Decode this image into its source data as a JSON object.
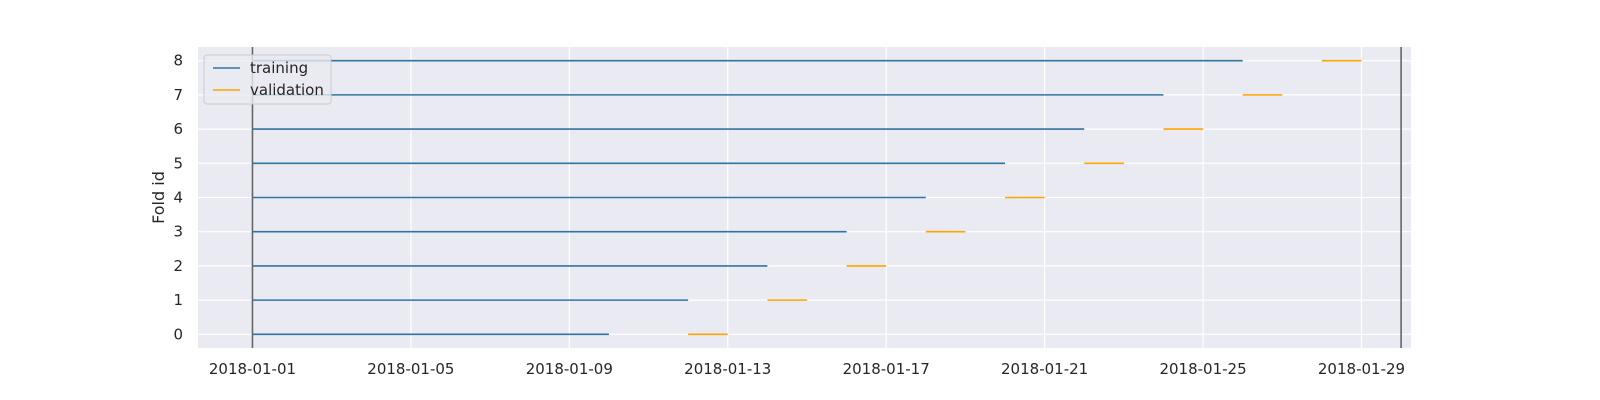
{
  "chart_data": {
    "type": "line",
    "xlabel": "",
    "ylabel": "Fold id",
    "x_ticks": [
      "2018-01-01",
      "2018-01-05",
      "2018-01-09",
      "2018-01-13",
      "2018-01-17",
      "2018-01-21",
      "2018-01-25",
      "2018-01-29"
    ],
    "y_ticks": [
      0,
      1,
      2,
      3,
      4,
      5,
      6,
      7,
      8
    ],
    "xlim": [
      "2017-12-30 15:00",
      "2018-01-30 06:00"
    ],
    "ylim": [
      -0.4,
      8.4
    ],
    "vertical_lines": [
      "2018-01-01",
      "2018-01-30"
    ],
    "grid": true,
    "legend_position": "top-left",
    "colors": {
      "training": "#3274a1",
      "validation": "#ffa500",
      "plot_background": "#eaeaf2",
      "grid": "#ffffff",
      "vline": "#666666"
    },
    "series": [
      {
        "name": "training",
        "segments": [
          {
            "fold": 0,
            "start": "2018-01-01",
            "end": "2018-01-10"
          },
          {
            "fold": 1,
            "start": "2018-01-01",
            "end": "2018-01-12"
          },
          {
            "fold": 2,
            "start": "2018-01-01",
            "end": "2018-01-14"
          },
          {
            "fold": 3,
            "start": "2018-01-01",
            "end": "2018-01-16"
          },
          {
            "fold": 4,
            "start": "2018-01-01",
            "end": "2018-01-18"
          },
          {
            "fold": 5,
            "start": "2018-01-01",
            "end": "2018-01-20"
          },
          {
            "fold": 6,
            "start": "2018-01-01",
            "end": "2018-01-22"
          },
          {
            "fold": 7,
            "start": "2018-01-01",
            "end": "2018-01-24"
          },
          {
            "fold": 8,
            "start": "2018-01-01",
            "end": "2018-01-26"
          }
        ]
      },
      {
        "name": "validation",
        "segments": [
          {
            "fold": 0,
            "start": "2018-01-12",
            "end": "2018-01-13"
          },
          {
            "fold": 1,
            "start": "2018-01-14",
            "end": "2018-01-15"
          },
          {
            "fold": 2,
            "start": "2018-01-16",
            "end": "2018-01-17"
          },
          {
            "fold": 3,
            "start": "2018-01-18",
            "end": "2018-01-19"
          },
          {
            "fold": 4,
            "start": "2018-01-20",
            "end": "2018-01-21"
          },
          {
            "fold": 5,
            "start": "2018-01-22",
            "end": "2018-01-23"
          },
          {
            "fold": 6,
            "start": "2018-01-24",
            "end": "2018-01-25"
          },
          {
            "fold": 7,
            "start": "2018-01-26",
            "end": "2018-01-27"
          },
          {
            "fold": 8,
            "start": "2018-01-28",
            "end": "2018-01-29"
          }
        ]
      }
    ]
  }
}
